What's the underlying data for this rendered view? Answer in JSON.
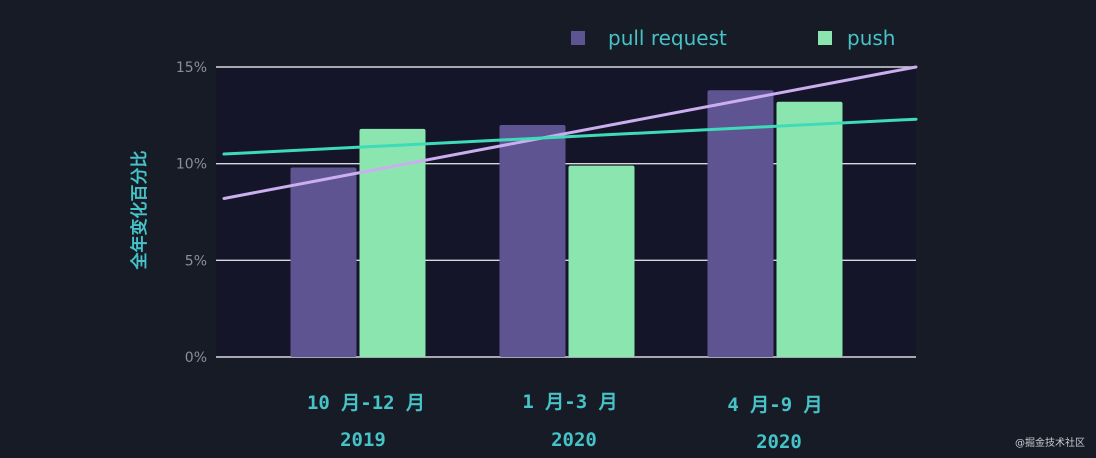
{
  "chart_data": {
    "type": "bar",
    "title": "",
    "ylabel": "全年变化百分比",
    "xlabel": "",
    "ylim": [
      0,
      15
    ],
    "y_ticks": [
      "0%",
      "5%",
      "10%",
      "15%"
    ],
    "y_tick_values": [
      0,
      5,
      10,
      15
    ],
    "grid": true,
    "legend_position": "top-right",
    "categories": [
      {
        "line1": "10 月-12 月",
        "line2": "2019"
      },
      {
        "line1": "1 月-3 月",
        "line2": "2020"
      },
      {
        "line1": "4 月-9 月",
        "line2": "2020"
      }
    ],
    "series": [
      {
        "name": "pull request",
        "color": "#5e5491",
        "values": [
          9.8,
          12.0,
          13.8
        ]
      },
      {
        "name": "push",
        "color": "#8ae6ae",
        "values": [
          11.8,
          9.9,
          13.2
        ]
      }
    ],
    "trendlines": [
      {
        "series": "pull request",
        "color": "#cbaef0",
        "start": 8.2,
        "end": 15.0
      },
      {
        "series": "push",
        "color": "#3ddbb8",
        "start": 10.5,
        "end": 12.3
      }
    ],
    "colors": {
      "background": "#161b25",
      "plot_background": "#15152a",
      "grid": "#d8d8de",
      "label": "#46c3c8"
    }
  },
  "watermark": "@掘金技术社区"
}
